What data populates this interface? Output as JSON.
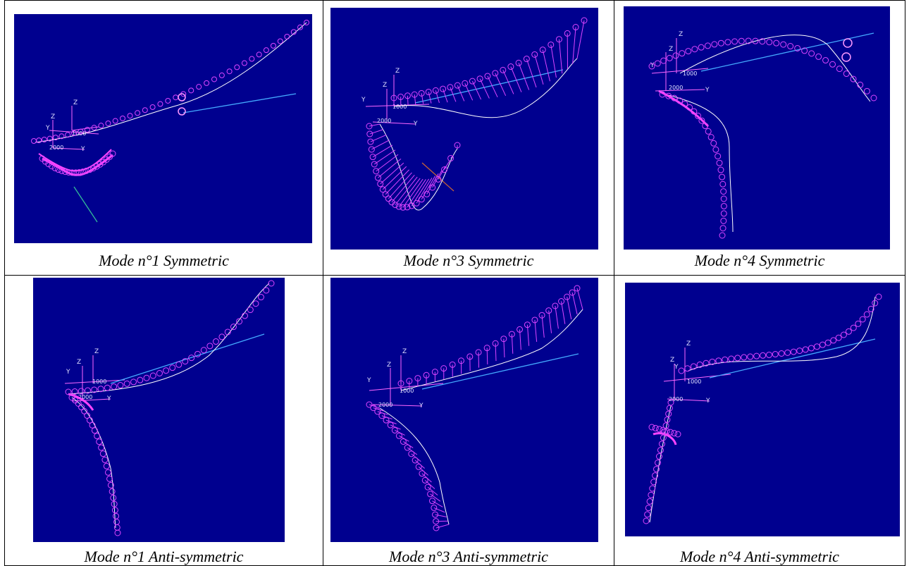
{
  "panels": [
    {
      "caption": "Mode n°1 Symmetric",
      "labels": {
        "z": "Z",
        "y": "Y",
        "m1000": "1000",
        "m2000": "2000"
      }
    },
    {
      "caption": "Mode n°3 Symmetric",
      "labels": {
        "z": "Z",
        "y": "Y",
        "m1000": "1000",
        "m2000": "2000"
      }
    },
    {
      "caption": "Mode n°4 Symmetric",
      "labels": {
        "z": "Z",
        "y": "Y",
        "m1000": "1000",
        "m2000": "2000"
      }
    },
    {
      "caption": "Mode n°1 Anti-symmetric",
      "labels": {
        "z": "Z",
        "y": "Y",
        "m1000": "1000",
        "m2000": "2000"
      }
    },
    {
      "caption": "Mode n°3 Anti-symmetric",
      "labels": {
        "z": "Z",
        "y": "Y",
        "m1000": "1000",
        "m2000": "2000"
      }
    },
    {
      "caption": "Mode n°4 Anti-symmetric",
      "labels": {
        "z": "Z",
        "y": "Y",
        "m1000": "1000",
        "m2000": "2000"
      }
    }
  ],
  "colors": {
    "background": "#00008f",
    "mode_shape": "#ff33ff",
    "deformed_line": "#ffffff",
    "axes": "#ff66ff",
    "text": "#e0e0ff"
  }
}
